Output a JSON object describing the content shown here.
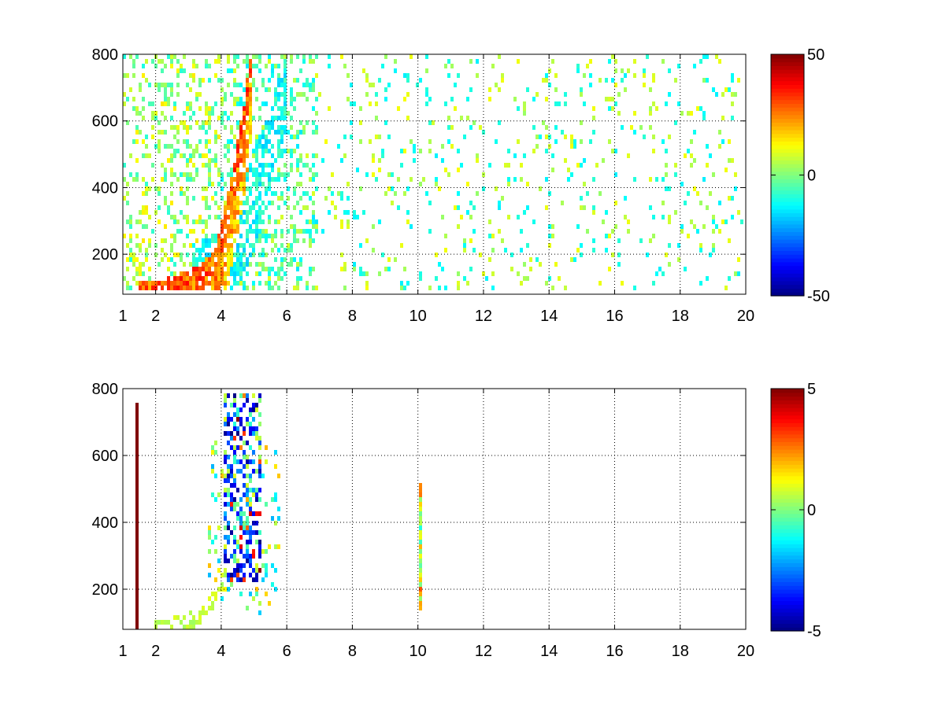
{
  "chart_data": [
    {
      "type": "heatmap",
      "title": "",
      "xlabel": "",
      "ylabel": "",
      "xlim": [
        1,
        20
      ],
      "ylim": [
        80,
        800
      ],
      "x_ticks": [
        1,
        2,
        4,
        6,
        8,
        10,
        12,
        14,
        16,
        18,
        20
      ],
      "y_ticks": [
        200,
        400,
        600,
        800
      ],
      "grid": true,
      "colormap": "jet",
      "colorbar": {
        "min": -50,
        "max": 50,
        "ticks": [
          -50,
          0,
          50
        ]
      },
      "features": [
        {
          "description": "dense high positive band",
          "curve_x": [
            1.5,
            2.5,
            3.2,
            3.8,
            4.1,
            4.4,
            4.7,
            4.9
          ],
          "curve_y": [
            85,
            100,
            130,
            180,
            300,
            450,
            620,
            790
          ],
          "value": 35
        },
        {
          "description": "negative band right of curve",
          "curve_x": [
            3.2,
            3.8,
            4.4,
            5.0,
            5.5,
            5.9
          ],
          "curve_y": [
            90,
            130,
            220,
            350,
            500,
            650
          ],
          "value": -18
        },
        {
          "description": "noisy vertical streaks",
          "x_range": [
            1,
            4
          ],
          "y_range": [
            80,
            800
          ],
          "value_range": [
            -10,
            15
          ]
        },
        {
          "description": "sparse speckle",
          "x_range": [
            6,
            20
          ],
          "y_range": [
            80,
            800
          ],
          "value_range": [
            -15,
            10
          ]
        }
      ]
    },
    {
      "type": "heatmap",
      "title": "",
      "xlabel": "",
      "ylabel": "",
      "xlim": [
        1,
        20
      ],
      "ylim": [
        80,
        800
      ],
      "x_ticks": [
        1,
        2,
        4,
        6,
        8,
        10,
        12,
        14,
        16,
        18,
        20
      ],
      "y_ticks": [
        200,
        400,
        600,
        800
      ],
      "grid": true,
      "colormap": "jet",
      "colorbar": {
        "min": -5,
        "max": 5,
        "ticks": [
          -5,
          0,
          5
        ]
      },
      "features": [
        {
          "description": "low curve",
          "curve_x": [
            2.0,
            2.8,
            3.4,
            3.8,
            4.2
          ],
          "curve_y": [
            85,
            95,
            120,
            170,
            260
          ],
          "value": 0.5
        },
        {
          "description": "negative cluster",
          "x_range": [
            4.1,
            5.2
          ],
          "y_range": [
            250,
            790
          ],
          "value_range": [
            -5,
            -1
          ]
        },
        {
          "description": "vertical line",
          "x": 1.45,
          "y_range": [
            80,
            760
          ],
          "value": 5
        },
        {
          "description": "vertical segment",
          "x": 10.1,
          "y_range": [
            140,
            520
          ],
          "value_range": [
            -1,
            3
          ]
        }
      ]
    }
  ]
}
